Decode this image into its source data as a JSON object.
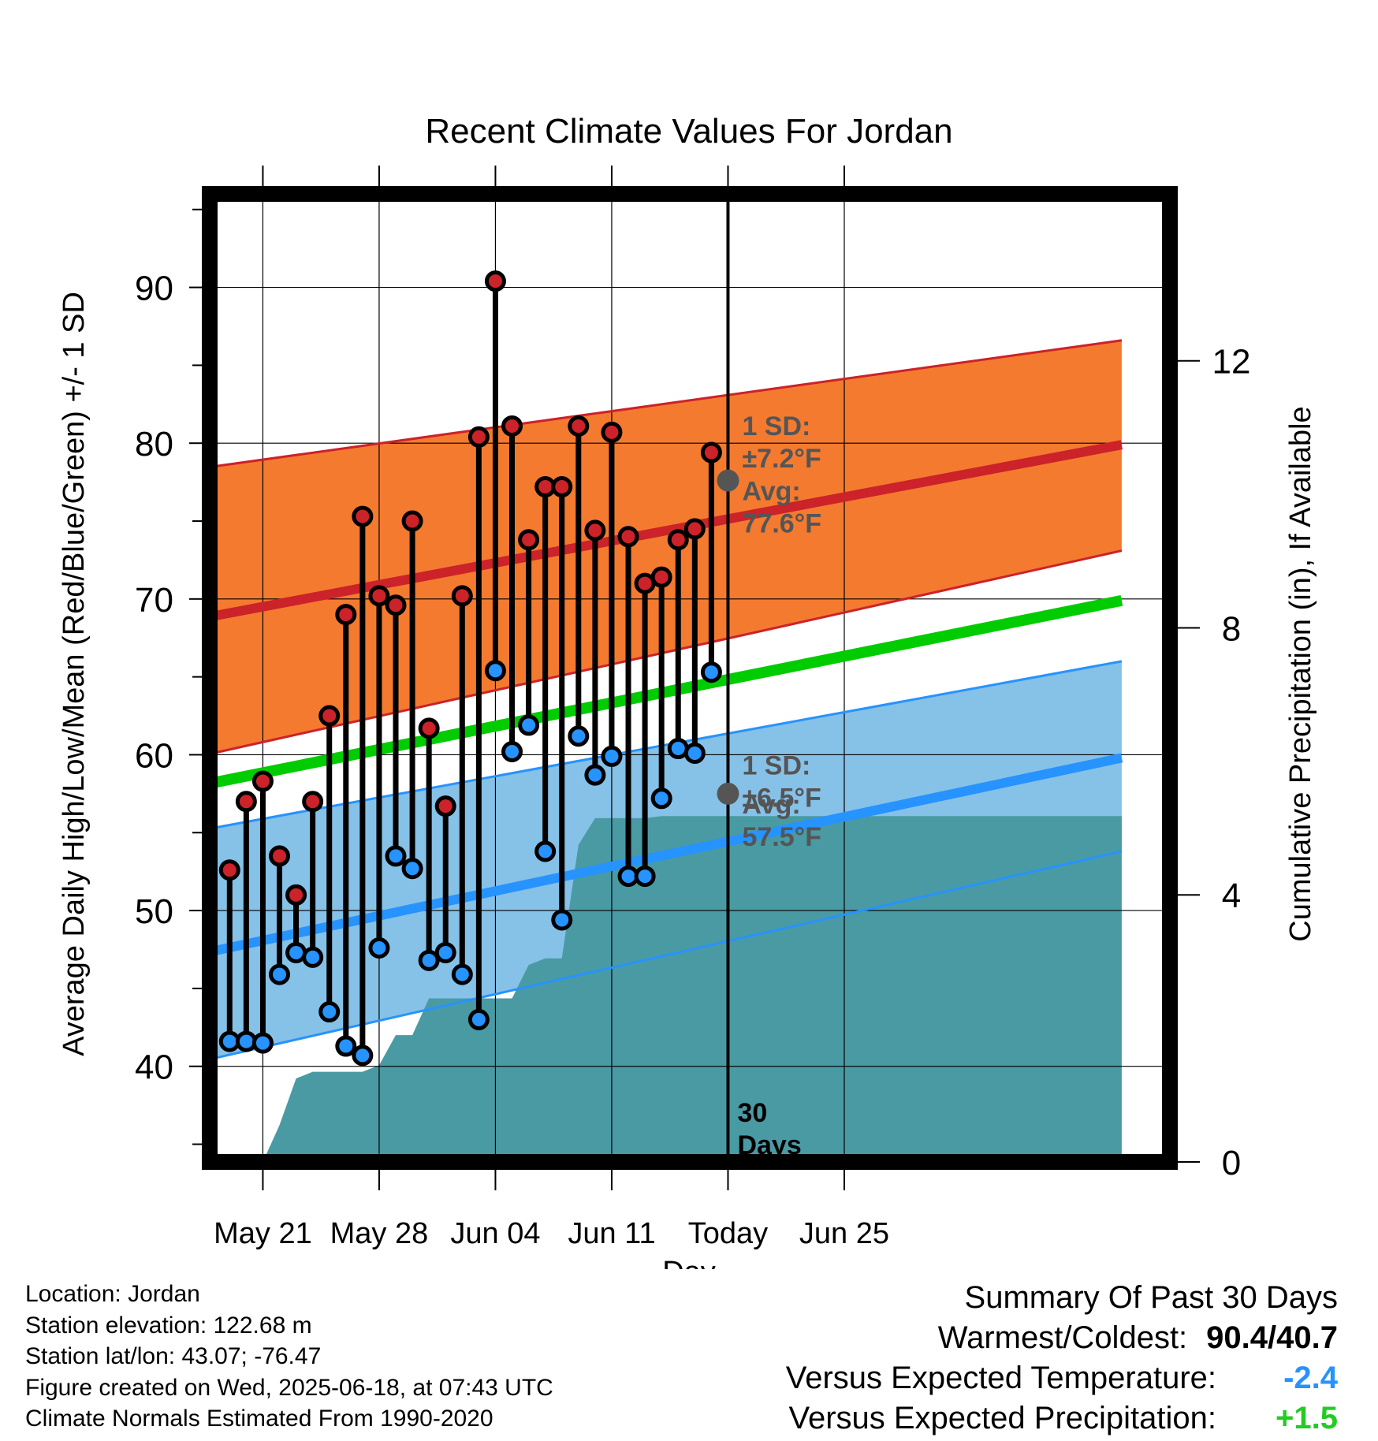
{
  "chart_data": {
    "type": "line",
    "title": "Recent Climate Values For Jordan",
    "xlabel": "Day",
    "ylabel": "Average Daily High/Low/Mean (Red/Blue/Green) +/- 1 SD",
    "y2label": "Cumulative Precipitation (in), If Available",
    "xlim": [
      -3.2,
      54.6
    ],
    "ylim": [
      32.8,
      96.0
    ],
    "y2lim": [
      0,
      14.5
    ],
    "x_ticks": [
      {
        "x": 0,
        "label": "May 21"
      },
      {
        "x": 7,
        "label": "May 28"
      },
      {
        "x": 14,
        "label": "Jun 04"
      },
      {
        "x": 21,
        "label": "Jun 11"
      },
      {
        "x": 28,
        "label": "Today"
      },
      {
        "x": 35,
        "label": "Jun 25"
      }
    ],
    "y_ticks": [
      40,
      50,
      60,
      70,
      80,
      90
    ],
    "y2_ticks": [
      0,
      4,
      8,
      12
    ],
    "grid": true,
    "today_x": 28,
    "days_x": [
      -2,
      -1,
      0,
      1,
      2,
      3,
      4,
      5,
      6,
      7,
      8,
      9,
      10,
      11,
      12,
      13,
      14,
      15,
      16,
      17,
      18,
      19,
      20,
      21,
      22,
      23,
      24,
      25,
      26,
      27
    ],
    "highs": [
      52.6,
      57.0,
      58.3,
      53.5,
      51.0,
      57.0,
      62.5,
      69.0,
      75.3,
      70.2,
      69.6,
      75.0,
      61.7,
      56.7,
      70.2,
      80.4,
      90.4,
      81.1,
      73.8,
      77.2,
      77.2,
      81.1,
      74.4,
      80.7,
      74.0,
      71.0,
      71.4,
      73.8,
      74.5,
      79.4
    ],
    "lows": [
      41.6,
      41.6,
      41.5,
      45.9,
      47.3,
      47.0,
      43.5,
      41.3,
      40.7,
      47.6,
      53.5,
      52.7,
      46.8,
      47.3,
      45.9,
      43.0,
      65.4,
      60.2,
      61.9,
      53.8,
      49.4,
      61.2,
      58.7,
      59.9,
      52.2,
      52.2,
      57.2,
      60.4,
      60.1,
      65.3
    ],
    "series": [
      {
        "name": "High",
        "color": "#cc2229",
        "x": [
          -3,
          51.7
        ],
        "values": [
          68.9,
          79.9
        ]
      },
      {
        "name": "High + 1 SD",
        "color": "#cc2229",
        "x": [
          -3,
          51.7
        ],
        "values": [
          78.5,
          86.6
        ]
      },
      {
        "name": "High - 1 SD",
        "color": "#cc2229",
        "x": [
          -3,
          51.7
        ],
        "values": [
          60.1,
          73.1
        ]
      },
      {
        "name": "Mean",
        "color": "#00cc00",
        "x": [
          -3,
          51.7
        ],
        "values": [
          58.2,
          69.9
        ]
      },
      {
        "name": "Low",
        "color": "#2693ff",
        "x": [
          -3,
          51.7
        ],
        "values": [
          47.4,
          59.8
        ]
      },
      {
        "name": "Low + 1 SD",
        "color": "#2693ff",
        "x": [
          -3,
          51.7
        ],
        "values": [
          55.3,
          66.0
        ]
      },
      {
        "name": "Low - 1 SD",
        "color": "#2693ff",
        "x": [
          -3,
          51.7
        ],
        "values": [
          40.5,
          53.8
        ]
      }
    ],
    "precip": {
      "color": "#4a9aa4",
      "x": [
        0,
        1,
        2,
        3,
        4,
        5,
        6,
        7,
        8,
        9,
        10,
        11,
        12,
        13,
        14,
        15,
        16,
        17,
        18,
        19,
        20,
        21,
        22,
        23,
        24,
        25,
        26,
        27,
        28,
        51.7
      ],
      "values": [
        0,
        0.55,
        1.25,
        1.35,
        1.35,
        1.35,
        1.35,
        1.45,
        1.9,
        1.9,
        2.45,
        2.45,
        2.45,
        2.45,
        2.45,
        2.45,
        2.95,
        3.05,
        3.05,
        4.75,
        5.15,
        5.15,
        5.15,
        5.15,
        5.18,
        5.18,
        5.18,
        5.18,
        5.18,
        5.18
      ]
    },
    "annotations": {
      "high_sd": {
        "line1": "1 SD:",
        "line2": "±7.2°F"
      },
      "high_avg": {
        "line1": "Avg:",
        "line2": "77.6°F",
        "value": 77.6
      },
      "low_sd": {
        "line1": "1 SD:",
        "line2": "±6.5°F"
      },
      "low_avg": {
        "line1": "Avg:",
        "line2": "57.5°F",
        "value": 57.5
      },
      "days": {
        "line1": "30",
        "line2": "Days"
      }
    }
  },
  "info": {
    "location": "Location: Jordan",
    "elevation": "Station elevation: 122.68 m",
    "latlon": "Station lat/lon: 43.07; -76.47",
    "created": "Figure created on Wed, 2025-06-18, at 07:43 UTC",
    "normals": "Climate Normals Estimated From 1990-2020"
  },
  "summary": {
    "title": "Summary Of Past 30 Days",
    "warmest_label": "Warmest/Coldest:",
    "warmest_value": "90.4/40.7",
    "temp_label": "Versus Expected Temperature:",
    "temp_value": "-2.4",
    "temp_color": "#2693ff",
    "precip_label": "Versus Expected Precipitation:",
    "precip_value": "+1.5",
    "precip_color": "#22cc22"
  }
}
